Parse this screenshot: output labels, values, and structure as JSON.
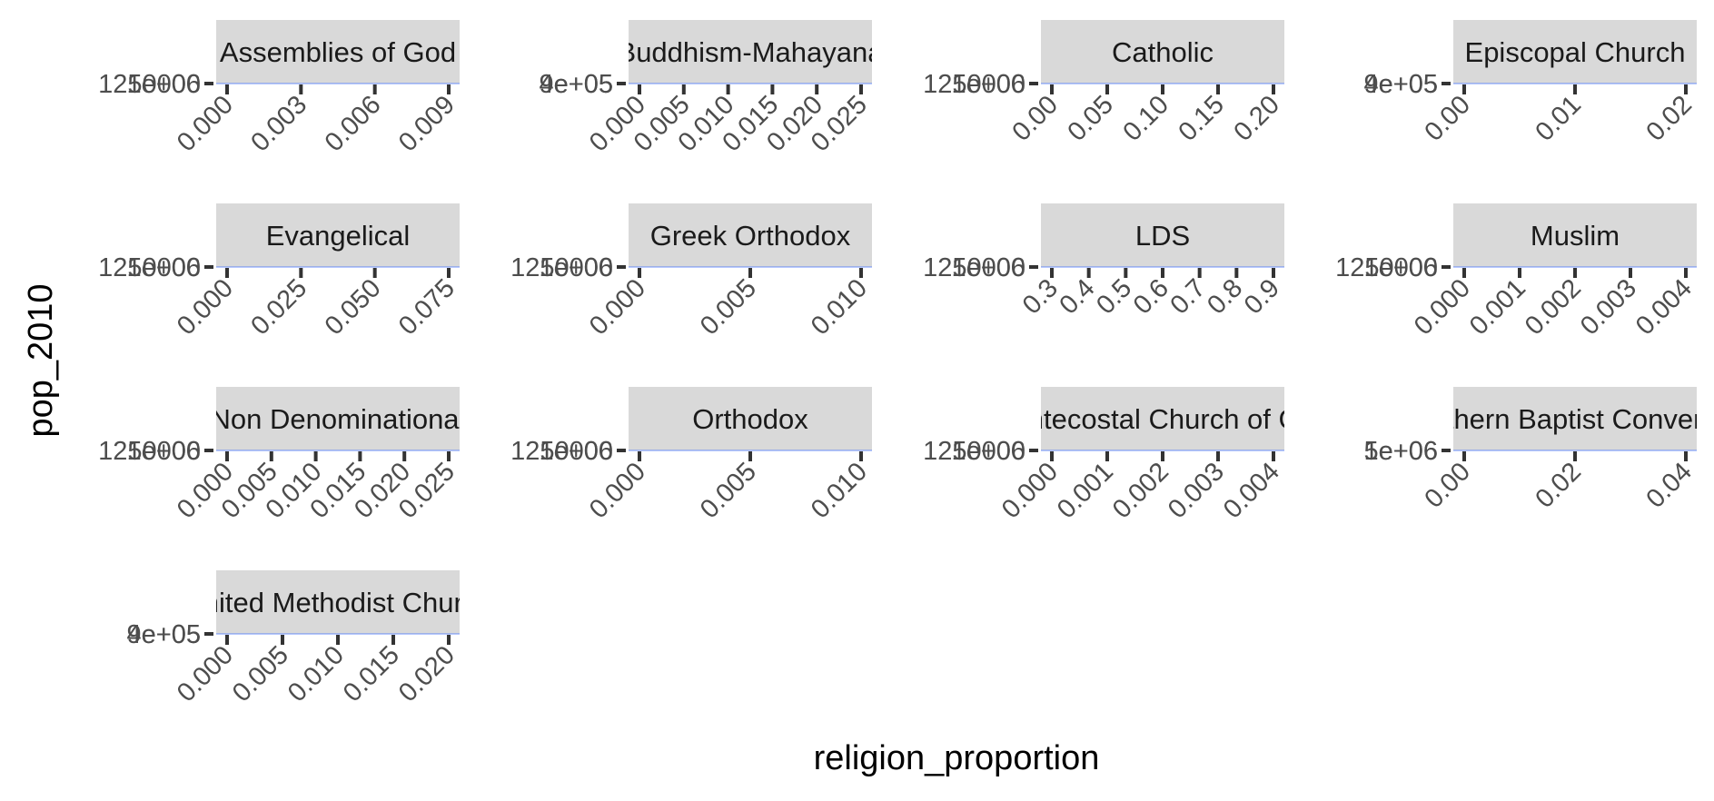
{
  "chart_data": {
    "type": "line",
    "xlabel": "religion_proportion",
    "ylabel": "pop_2010",
    "panels": [
      {
        "strip": "Assemblies of God",
        "y_labels": [
          "1e+06",
          "1250000"
        ],
        "x_ticks": [
          "0.000",
          "0.003",
          "0.006",
          "0.009"
        ]
      },
      {
        "strip": "Buddhism-Mahayana",
        "y_labels": [
          "9e+05",
          "4e+05"
        ],
        "x_ticks": [
          "0.000",
          "0.005",
          "0.010",
          "0.015",
          "0.020",
          "0.025"
        ]
      },
      {
        "strip": "Catholic",
        "y_labels": [
          "1e+06",
          "1250000"
        ],
        "x_ticks": [
          "0.00",
          "0.05",
          "0.10",
          "0.15",
          "0.20"
        ]
      },
      {
        "strip": "Episcopal Church",
        "y_labels": [
          "9e+05",
          "4e+05"
        ],
        "x_ticks": [
          "0.00",
          "0.01",
          "0.02"
        ]
      },
      {
        "strip": "Evangelical",
        "y_labels": [
          "1e+06",
          "1250000"
        ],
        "x_ticks": [
          "0.000",
          "0.025",
          "0.050",
          "0.075"
        ]
      },
      {
        "strip": "Greek Orthodox",
        "y_labels": [
          "1e+06",
          "1250000"
        ],
        "x_ticks": [
          "0.000",
          "0.005",
          "0.010"
        ]
      },
      {
        "strip": "LDS",
        "y_labels": [
          "1e+06",
          "1250000"
        ],
        "x_ticks": [
          "0.3",
          "0.4",
          "0.5",
          "0.6",
          "0.7",
          "0.8",
          "0.9"
        ]
      },
      {
        "strip": "Muslim",
        "y_labels": [
          "1e+06",
          "1250000"
        ],
        "x_ticks": [
          "0.000",
          "0.001",
          "0.002",
          "0.003",
          "0.004"
        ]
      },
      {
        "strip": "Non Denominational",
        "y_labels": [
          "1e+06",
          "1250000"
        ],
        "x_ticks": [
          "0.000",
          "0.005",
          "0.010",
          "0.015",
          "0.020",
          "0.025"
        ]
      },
      {
        "strip": "Orthodox",
        "y_labels": [
          "1e+06",
          "1250000"
        ],
        "x_ticks": [
          "0.000",
          "0.005",
          "0.010"
        ]
      },
      {
        "strip": "Pentecostal Church of God",
        "y_labels": [
          "1e+06",
          "1250000"
        ],
        "x_ticks": [
          "0.000",
          "0.001",
          "0.002",
          "0.003",
          "0.004"
        ]
      },
      {
        "strip": "Southern Baptist Convention",
        "y_labels": [
          "5e+06",
          "1e+06"
        ],
        "x_ticks": [
          "0.00",
          "0.02",
          "0.04"
        ]
      },
      {
        "strip": "United Methodist Church",
        "y_labels": [
          "9e+05",
          "4e+05"
        ],
        "x_ticks": [
          "0.000",
          "0.005",
          "0.010",
          "0.015",
          "0.020"
        ]
      }
    ]
  }
}
